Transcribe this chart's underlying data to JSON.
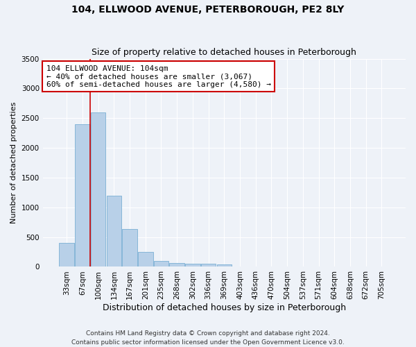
{
  "title": "104, ELLWOOD AVENUE, PETERBOROUGH, PE2 8LY",
  "subtitle": "Size of property relative to detached houses in Peterborough",
  "xlabel": "Distribution of detached houses by size in Peterborough",
  "ylabel": "Number of detached properties",
  "categories": [
    "33sqm",
    "67sqm",
    "100sqm",
    "134sqm",
    "167sqm",
    "201sqm",
    "235sqm",
    "268sqm",
    "302sqm",
    "336sqm",
    "369sqm",
    "403sqm",
    "436sqm",
    "470sqm",
    "504sqm",
    "537sqm",
    "571sqm",
    "604sqm",
    "638sqm",
    "672sqm",
    "705sqm"
  ],
  "values": [
    400,
    2400,
    2600,
    1200,
    630,
    250,
    100,
    60,
    55,
    50,
    45,
    0,
    0,
    0,
    0,
    0,
    0,
    0,
    0,
    0,
    0
  ],
  "bar_color": "#b8d0e8",
  "bar_edge_color": "#7aafd4",
  "vline_color": "#cc0000",
  "vline_position": 2,
  "ylim": [
    0,
    3500
  ],
  "yticks": [
    0,
    500,
    1000,
    1500,
    2000,
    2500,
    3000,
    3500
  ],
  "annotation_text": "104 ELLWOOD AVENUE: 104sqm\n← 40% of detached houses are smaller (3,067)\n60% of semi-detached houses are larger (4,580) →",
  "annotation_box_facecolor": "#ffffff",
  "annotation_box_edgecolor": "#cc0000",
  "footer": "Contains HM Land Registry data © Crown copyright and database right 2024.\nContains public sector information licensed under the Open Government Licence v3.0.",
  "background_color": "#eef2f8",
  "grid_color": "#ffffff",
  "title_fontsize": 10,
  "subtitle_fontsize": 9,
  "ylabel_fontsize": 8,
  "xlabel_fontsize": 9,
  "tick_fontsize": 7.5,
  "annotation_fontsize": 8,
  "footer_fontsize": 6.5
}
